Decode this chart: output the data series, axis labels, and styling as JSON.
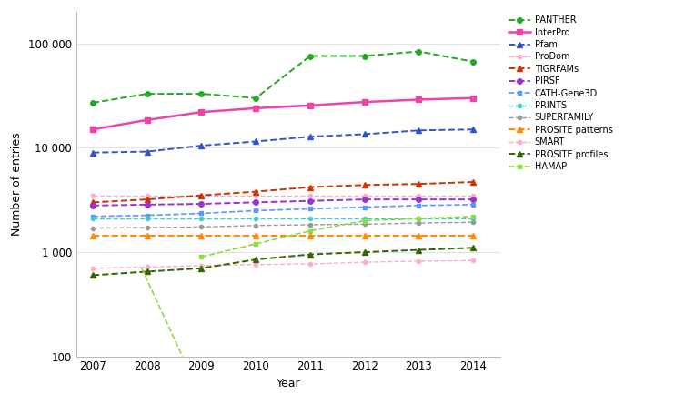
{
  "years": [
    2007,
    2008,
    2009,
    2010,
    2011,
    2012,
    2013,
    2014
  ],
  "series": {
    "PANTHER": {
      "values": [
        27000,
        33000,
        33000,
        30000,
        76000,
        76000,
        84000,
        67000
      ],
      "color": "#22aa22",
      "linestyle": "--",
      "marker": "o",
      "markersize": 4,
      "linewidth": 1.4
    },
    "InterPro": {
      "values": [
        15000,
        18500,
        22000,
        24000,
        25500,
        27500,
        29000,
        30000
      ],
      "color": "#ee44aa",
      "linestyle": "-",
      "marker": "s",
      "markersize": 4,
      "linewidth": 1.8
    },
    "Pfam": {
      "values": [
        9000,
        9200,
        10500,
        11500,
        12800,
        13500,
        14700,
        15000
      ],
      "color": "#3355cc",
      "linestyle": "--",
      "marker": "^",
      "markersize": 4,
      "linewidth": 1.4
    },
    "ProDom": {
      "values": [
        3500,
        3500,
        3500,
        3500,
        3500,
        3500,
        3500,
        3500
      ],
      "color": "#ffaacc",
      "linestyle": "--",
      "marker": "o",
      "markersize": 3,
      "linewidth": 1.0
    },
    "TIGRFAMs": {
      "values": [
        3000,
        3200,
        3500,
        3800,
        4200,
        4400,
        4500,
        4700
      ],
      "color": "#cc3300",
      "linestyle": "--",
      "marker": "^",
      "markersize": 4,
      "linewidth": 1.4
    },
    "PIRSF": {
      "values": [
        2800,
        2850,
        2900,
        3000,
        3100,
        3200,
        3200,
        3200
      ],
      "color": "#9933cc",
      "linestyle": "--",
      "marker": "o",
      "markersize": 4,
      "linewidth": 1.4
    },
    "CATH-Gene3D": {
      "values": [
        2200,
        2250,
        2350,
        2500,
        2600,
        2700,
        2800,
        2850
      ],
      "color": "#5599ff",
      "linestyle": "--",
      "marker": "s",
      "markersize": 3,
      "linewidth": 1.2
    },
    "PRINTS": {
      "values": [
        2100,
        2100,
        2100,
        2100,
        2100,
        2100,
        2100,
        2100
      ],
      "color": "#44cccc",
      "linestyle": "--",
      "marker": "o",
      "markersize": 3,
      "linewidth": 1.0
    },
    "SUPERFAMILY": {
      "values": [
        1700,
        1720,
        1740,
        1800,
        1830,
        1850,
        1900,
        1930
      ],
      "color": "#999999",
      "linestyle": "--",
      "marker": "o",
      "markersize": 3,
      "linewidth": 1.0
    },
    "PROSITE patterns": {
      "values": [
        1450,
        1450,
        1450,
        1450,
        1450,
        1450,
        1450,
        1450
      ],
      "color": "#ff8800",
      "linestyle": "--",
      "marker": "^",
      "markersize": 4,
      "linewidth": 1.4
    },
    "SMART": {
      "values": [
        700,
        720,
        740,
        760,
        770,
        800,
        820,
        830
      ],
      "color": "#ffaacc",
      "linestyle": "--",
      "marker": "o",
      "markersize": 3,
      "linewidth": 1.0
    },
    "PROSITE profiles": {
      "values": [
        600,
        650,
        700,
        850,
        950,
        1000,
        1050,
        1100
      ],
      "color": "#336600",
      "linestyle": "--",
      "marker": "^",
      "markersize": 4,
      "linewidth": 1.4
    },
    "HAMAP": {
      "color": "#88dd44",
      "linestyle": "--",
      "marker": "s",
      "markersize": 3,
      "linewidth": 1.2,
      "seg1_x": [
        2008.65
      ],
      "seg1_y": [
        100
      ],
      "seg2_x": [
        2009,
        2010,
        2011,
        2012,
        2013,
        2014
      ],
      "seg2_y": [
        900,
        1200,
        1600,
        2000,
        2100,
        2200
      ]
    }
  },
  "ylabel": "Number of entries",
  "xlabel": "Year",
  "ylim": [
    100,
    200000
  ],
  "yticks": [
    100,
    1000,
    10000,
    100000
  ],
  "ytick_labels": [
    "100",
    "1 000",
    "10 000",
    "100 000"
  ],
  "xticks": [
    2007,
    2008,
    2009,
    2010,
    2011,
    2012,
    2013,
    2014
  ],
  "legend_order": [
    "PANTHER",
    "InterPro",
    "Pfam",
    "ProDom",
    "TIGRFAMs",
    "PIRSF",
    "CATH-Gene3D",
    "PRINTS",
    "SUPERFAMILY",
    "PROSITE patterns",
    "SMART",
    "PROSITE profiles",
    "HAMAP"
  ],
  "background_color": "#ffffff",
  "grid_color": "#dddddd"
}
